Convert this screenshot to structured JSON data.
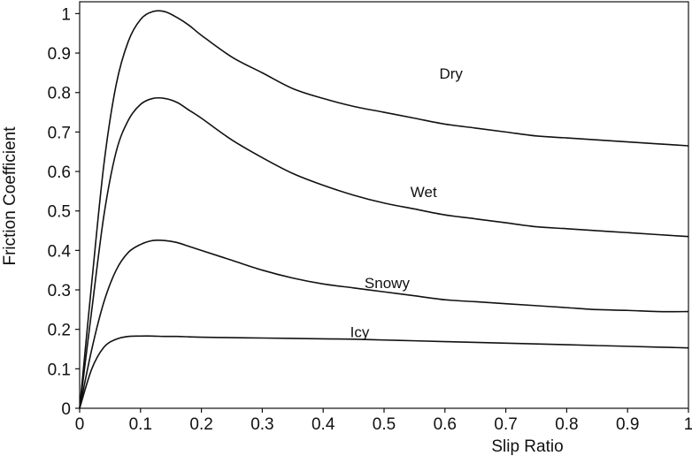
{
  "chart_data": {
    "type": "line",
    "title": "",
    "xlabel": "Slip Ratio",
    "ylabel": "Friction Coefficient",
    "xlim": [
      0,
      1
    ],
    "ylim": [
      0,
      1.03
    ],
    "grid": false,
    "legend": "none",
    "xticks": [
      0,
      0.1,
      0.2,
      0.3,
      0.4,
      0.5,
      0.6,
      0.7,
      0.8,
      0.9,
      1
    ],
    "xtick_labels": [
      "0",
      "0.1",
      "0.2",
      "0.3",
      "0.4",
      "0.5",
      "0.6",
      "0.7",
      "0.8",
      "0.9",
      "1"
    ],
    "yticks": [
      0,
      0.1,
      0.2,
      0.3,
      0.4,
      0.5,
      0.6,
      0.7,
      0.8,
      0.9,
      1
    ],
    "ytick_labels": [
      "0",
      "0.1",
      "0.2",
      "0.3",
      "0.4",
      "0.5",
      "0.6",
      "0.7",
      "0.8",
      "0.9",
      "1"
    ],
    "series": [
      {
        "name": "Dry",
        "label_at": [
          0.61,
          0.835
        ],
        "x": [
          0,
          0.02,
          0.04,
          0.06,
          0.08,
          0.1,
          0.12,
          0.14,
          0.16,
          0.18,
          0.2,
          0.25,
          0.3,
          0.35,
          0.4,
          0.45,
          0.5,
          0.55,
          0.6,
          0.65,
          0.7,
          0.75,
          0.8,
          0.85,
          0.9,
          0.95,
          1.0
        ],
        "y": [
          0,
          0.32,
          0.62,
          0.82,
          0.93,
          0.985,
          1.005,
          1.005,
          0.99,
          0.97,
          0.945,
          0.89,
          0.85,
          0.81,
          0.785,
          0.765,
          0.75,
          0.735,
          0.72,
          0.71,
          0.7,
          0.69,
          0.685,
          0.68,
          0.675,
          0.67,
          0.665
        ]
      },
      {
        "name": "Wet",
        "label_at": [
          0.565,
          0.535
        ],
        "x": [
          0,
          0.02,
          0.04,
          0.06,
          0.08,
          0.1,
          0.12,
          0.14,
          0.16,
          0.18,
          0.2,
          0.25,
          0.3,
          0.35,
          0.4,
          0.45,
          0.5,
          0.55,
          0.6,
          0.65,
          0.7,
          0.75,
          0.8,
          0.85,
          0.9,
          0.95,
          1.0
        ],
        "y": [
          0,
          0.25,
          0.49,
          0.65,
          0.73,
          0.77,
          0.785,
          0.785,
          0.775,
          0.755,
          0.735,
          0.68,
          0.635,
          0.595,
          0.565,
          0.54,
          0.52,
          0.505,
          0.49,
          0.48,
          0.47,
          0.46,
          0.455,
          0.45,
          0.445,
          0.44,
          0.435
        ]
      },
      {
        "name": "Snowy",
        "label_at": [
          0.505,
          0.305
        ],
        "x": [
          0,
          0.02,
          0.04,
          0.06,
          0.08,
          0.1,
          0.12,
          0.14,
          0.16,
          0.18,
          0.2,
          0.25,
          0.3,
          0.35,
          0.4,
          0.45,
          0.5,
          0.55,
          0.6,
          0.65,
          0.7,
          0.75,
          0.8,
          0.85,
          0.9,
          0.95,
          1.0
        ],
        "y": [
          0,
          0.15,
          0.27,
          0.35,
          0.395,
          0.415,
          0.425,
          0.425,
          0.42,
          0.41,
          0.4,
          0.375,
          0.35,
          0.33,
          0.315,
          0.305,
          0.295,
          0.285,
          0.275,
          0.27,
          0.265,
          0.26,
          0.255,
          0.25,
          0.248,
          0.245,
          0.245
        ]
      },
      {
        "name": "Icy",
        "label_at": [
          0.46,
          0.18
        ],
        "x": [
          0,
          0.02,
          0.04,
          0.06,
          0.08,
          0.1,
          0.12,
          0.14,
          0.16,
          0.18,
          0.2,
          0.25,
          0.3,
          0.35,
          0.4,
          0.45,
          0.5,
          0.55,
          0.6,
          0.65,
          0.7,
          0.75,
          0.8,
          0.85,
          0.9,
          0.95,
          1.0
        ],
        "y": [
          0,
          0.1,
          0.155,
          0.175,
          0.182,
          0.183,
          0.183,
          0.182,
          0.182,
          0.181,
          0.18,
          0.179,
          0.178,
          0.177,
          0.176,
          0.175,
          0.173,
          0.171,
          0.169,
          0.167,
          0.165,
          0.163,
          0.161,
          0.159,
          0.157,
          0.155,
          0.153
        ]
      }
    ]
  }
}
